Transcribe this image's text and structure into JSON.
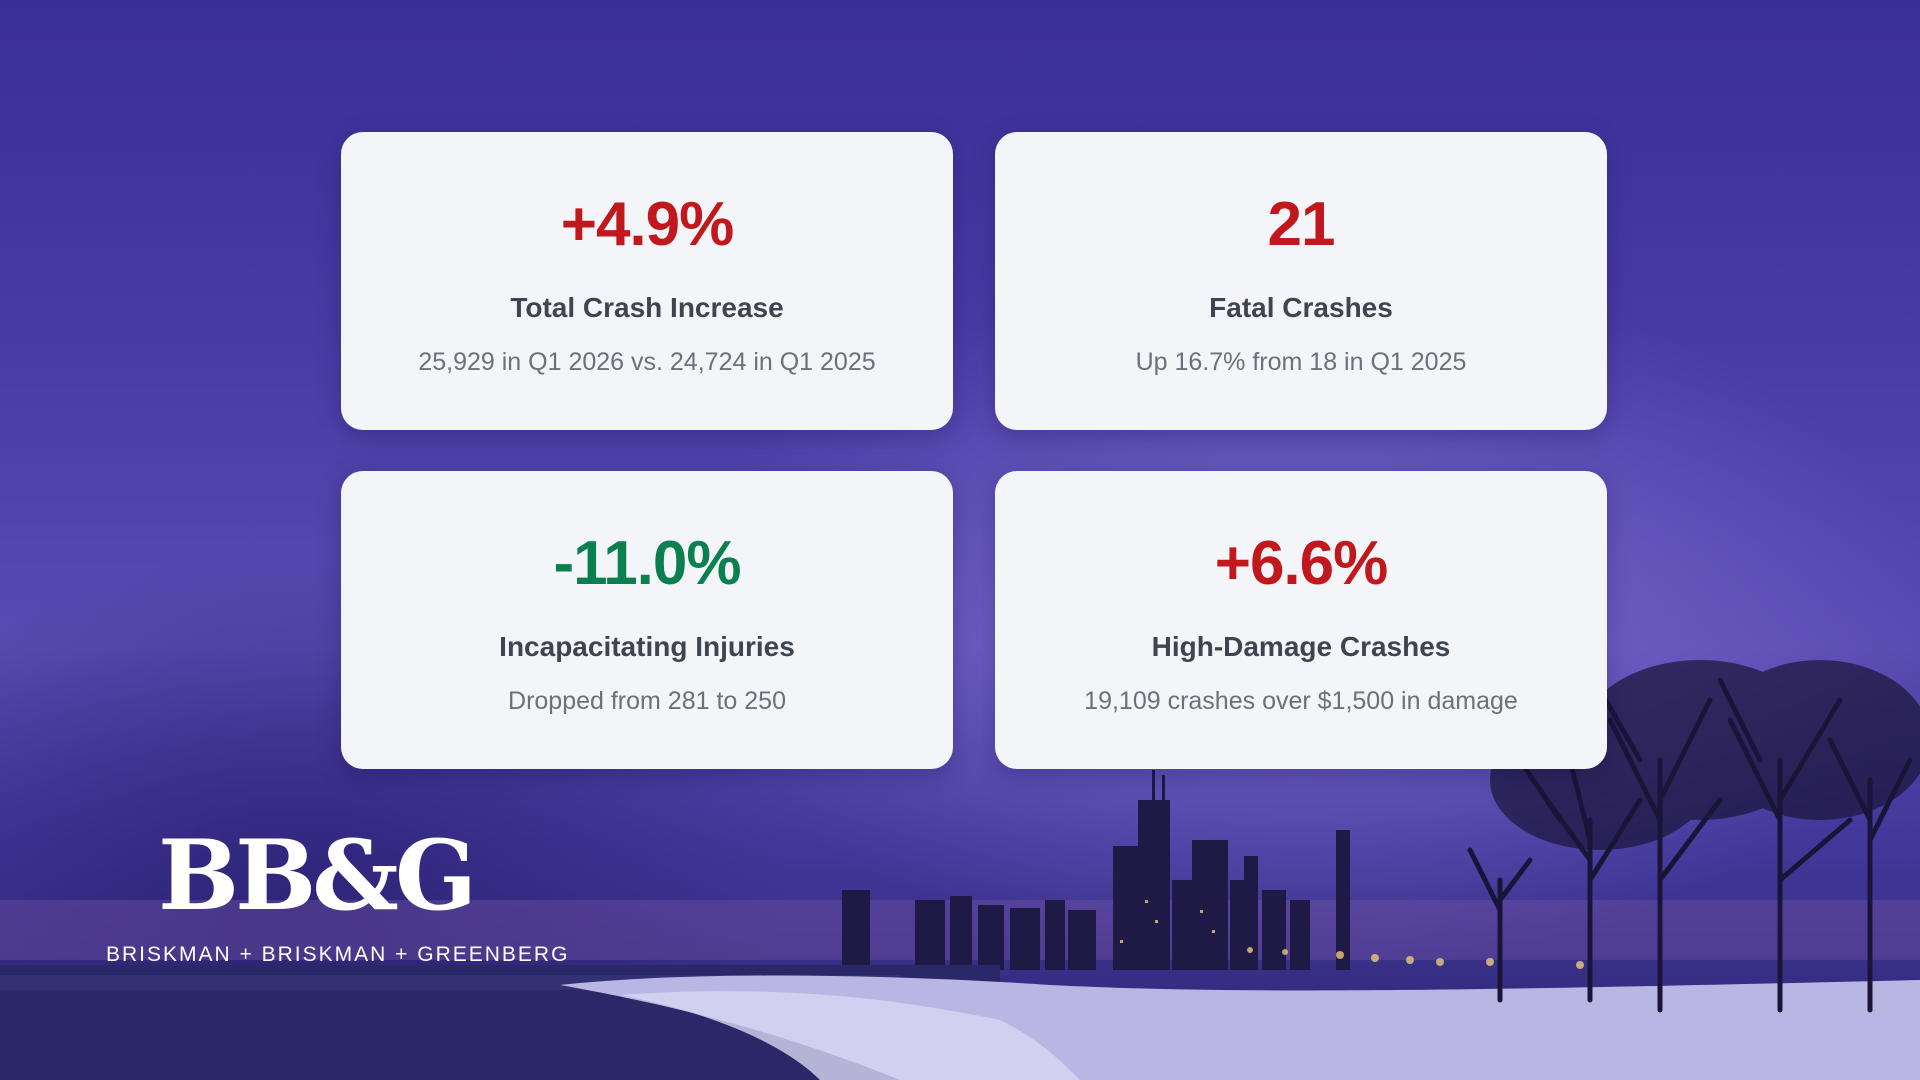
{
  "colors": {
    "negative": "#c0181c",
    "positive": "#0a8050"
  },
  "cards": [
    {
      "value": "+4.9%",
      "label": "Total Crash Increase",
      "desc": "25,929 in Q1 2026 vs. 24,724 in Q1 2025",
      "tone": "negative"
    },
    {
      "value": "21",
      "label": "Fatal Crashes",
      "desc": "Up 16.7% from 18 in Q1 2025",
      "tone": "negative"
    },
    {
      "value": "-11.0%",
      "label": "Incapacitating Injuries",
      "desc": "Dropped from 281 to 250",
      "tone": "positive"
    },
    {
      "value": "+6.6%",
      "label": "High-Damage Crashes",
      "desc": "19,109 crashes over $1,500 in damage",
      "tone": "negative"
    }
  ],
  "logo": {
    "mark": "BB&G",
    "name": "BRISKMAN + BRISKMAN + GREENBERG"
  }
}
